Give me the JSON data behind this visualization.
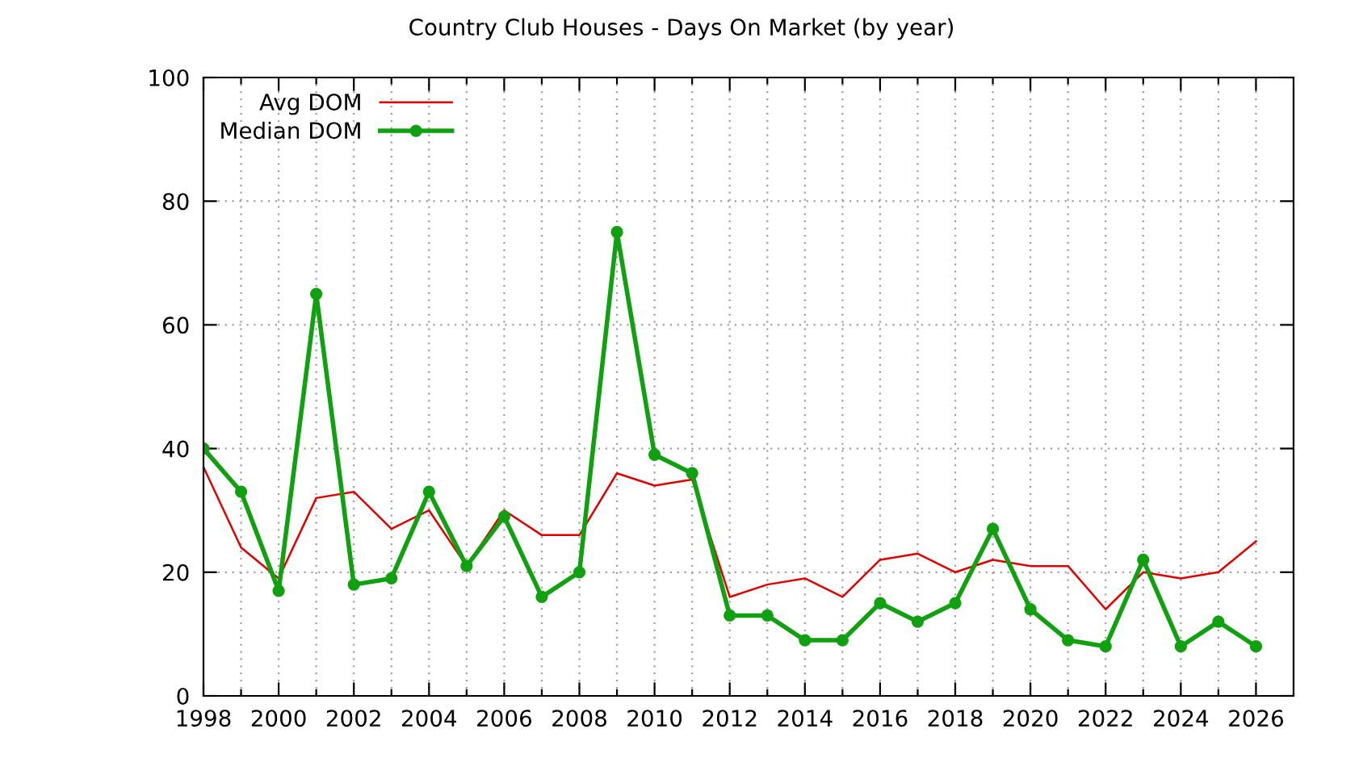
{
  "chart_data": {
    "type": "line",
    "title": "Country Club Houses - Days On Market (by year)",
    "x": [
      1998,
      1999,
      2000,
      2001,
      2002,
      2003,
      2004,
      2005,
      2006,
      2007,
      2008,
      2009,
      2010,
      2011,
      2012,
      2013,
      2014,
      2015,
      2016,
      2017,
      2018,
      2019,
      2020,
      2021,
      2022,
      2023,
      2024,
      2025,
      2026
    ],
    "series": [
      {
        "name": "Avg DOM",
        "color": "#e00000",
        "marker": "none",
        "values": [
          37,
          24,
          19,
          32,
          33,
          27,
          30,
          21,
          30,
          26,
          26,
          36,
          34,
          35,
          16,
          18,
          19,
          16,
          22,
          23,
          20,
          22,
          21,
          21,
          14,
          20,
          19,
          20,
          25
        ]
      },
      {
        "name": "Median DOM",
        "color": "#10a010",
        "marker": "circle",
        "values": [
          40,
          33,
          17,
          65,
          18,
          19,
          33,
          21,
          29,
          16,
          20,
          75,
          39,
          36,
          13,
          13,
          9,
          9,
          15,
          12,
          15,
          27,
          14,
          9,
          8,
          22,
          8,
          12,
          8
        ]
      }
    ],
    "xlim": [
      1998,
      2027
    ],
    "xticks": [
      1998,
      {
        "value": 1999,
        "label": null
      },
      2000,
      {
        "value": 2001,
        "label": null
      },
      2002,
      {
        "value": 2003,
        "label": null
      },
      2004,
      {
        "value": 2005,
        "label": null
      },
      2006,
      {
        "value": 2007,
        "label": null
      },
      2008,
      {
        "value": 2009,
        "label": null
      },
      2010,
      {
        "value": 2011,
        "label": null
      },
      2012,
      {
        "value": 2013,
        "label": null
      },
      2014,
      {
        "value": 2015,
        "label": null
      },
      2016,
      {
        "value": 2017,
        "label": null
      },
      2018,
      {
        "value": 2019,
        "label": null
      },
      2020,
      {
        "value": 2021,
        "label": null
      },
      2022,
      {
        "value": 2023,
        "label": null
      },
      2024,
      {
        "value": 2025,
        "label": null
      },
      2026
    ],
    "ylim": [
      0,
      100
    ],
    "yticks": [
      0,
      20,
      40,
      60,
      80,
      100
    ],
    "grid": true,
    "legend": "top left"
  }
}
